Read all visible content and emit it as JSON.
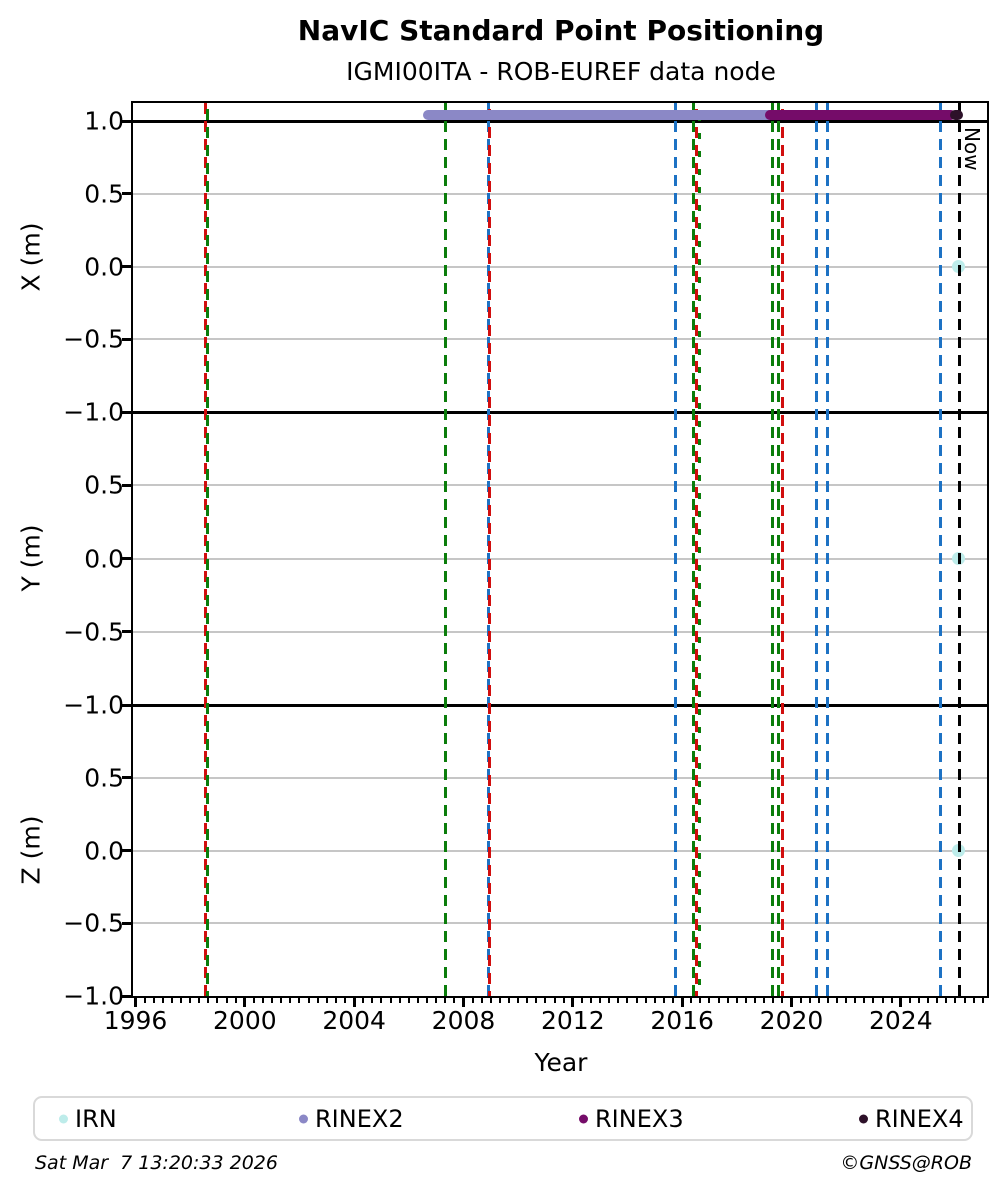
{
  "chart_data": {
    "type": "scatter",
    "title": "NavIC Standard Point Positioning",
    "subtitle": "IGMI00ITA - ROB-EUREF data node",
    "xlabel": "Year",
    "xlim": [
      1995.9,
      2027.2
    ],
    "xticks": [
      1996,
      2000,
      2004,
      2008,
      2012,
      2016,
      2020,
      2024
    ],
    "xtick_labels": [
      "1996",
      "2000",
      "2004",
      "2008",
      "2012",
      "2016",
      "2020",
      "2024"
    ],
    "minor_xtick_step_years": 0.333,
    "grid": "horizontal-only",
    "reference_lines_y": [
      1.0,
      -1.0
    ],
    "subplots": [
      {
        "ylabel": "X (m)",
        "ylim": [
          -1.0,
          1.125
        ],
        "yticks": [
          1.0,
          0.5,
          0.0,
          -0.5,
          -1.0
        ],
        "ytick_labels": [
          "1.0",
          "0.5",
          "0.0",
          "−0.5",
          "−1.0"
        ]
      },
      {
        "ylabel": "Y (m)",
        "ylim": [
          -1.0,
          1.0
        ],
        "yticks": [
          0.5,
          0.0,
          -0.5,
          -1.0
        ],
        "ytick_labels": [
          "0.5",
          "0.0",
          "−0.5",
          "−1.0"
        ]
      },
      {
        "ylabel": "Z (m)",
        "ylim": [
          -1.0,
          1.0
        ],
        "yticks": [
          0.5,
          0.0,
          -0.5,
          -1.0
        ],
        "ytick_labels": [
          "0.5",
          "0.0",
          "−0.5",
          "−1.0"
        ]
      }
    ],
    "series_bands": [
      {
        "name": "RINEX2",
        "subplot": 0,
        "y": 1.045,
        "start": 2006.7,
        "end": 2019.44,
        "color": "#8b88c6"
      },
      {
        "name": "RINEX3",
        "subplot": 0,
        "y": 1.045,
        "start": 2019.22,
        "end": 2025.84,
        "color": "#750c69"
      },
      {
        "name": "RINEX4",
        "subplot": 0,
        "y": 1.045,
        "start": 2026.0,
        "end": 2026.1,
        "color": "#2d1129"
      }
    ],
    "points": [
      {
        "name": "IRN",
        "subplot": 0,
        "x": 2026.1,
        "y": 0.0,
        "color": "#bdecea"
      },
      {
        "name": "IRN",
        "subplot": 1,
        "x": 2026.1,
        "y": 0.0,
        "color": "#bdecea"
      },
      {
        "name": "IRN",
        "subplot": 2,
        "x": 2026.1,
        "y": 0.0,
        "color": "#bdecea"
      }
    ],
    "event_lines": [
      {
        "x": 1998.56,
        "color": "#d10e0e"
      },
      {
        "x": 1998.63,
        "color": "#0b7d0b"
      },
      {
        "x": 2007.33,
        "color": "#0b7d0b"
      },
      {
        "x": 2008.9,
        "color": "#1d72c4"
      },
      {
        "x": 2008.96,
        "color": "#d10e0e"
      },
      {
        "x": 2015.76,
        "color": "#1d72c4"
      },
      {
        "x": 2016.43,
        "color": "#0b7d0b"
      },
      {
        "x": 2016.53,
        "color": "#d10e0e"
      },
      {
        "x": 2016.62,
        "color": "#0b7d0b"
      },
      {
        "x": 2019.29,
        "color": "#0b7d0b"
      },
      {
        "x": 2019.54,
        "color": "#0b7d0b"
      },
      {
        "x": 2019.66,
        "color": "#d10e0e"
      },
      {
        "x": 2020.9,
        "color": "#1d72c4"
      },
      {
        "x": 2021.31,
        "color": "#1d72c4"
      },
      {
        "x": 2025.44,
        "color": "#1d72c4"
      }
    ],
    "now_line": {
      "x": 2026.15,
      "label": "Now",
      "color": "#000000"
    }
  },
  "legend": {
    "items": [
      {
        "label": "IRN",
        "color": "#bdecea"
      },
      {
        "label": "RINEX2",
        "color": "#8b88c6"
      },
      {
        "label": "RINEX3",
        "color": "#750c69"
      },
      {
        "label": "RINEX4",
        "color": "#2d1129"
      }
    ]
  },
  "footer": {
    "timestamp": "Sat Mar  7 13:20:33 2026",
    "copyright": "©GNSS@ROB"
  },
  "colors": {
    "gridline": "#c6c6c6",
    "spine": "#000000",
    "legend_border": "#d9d9d9"
  }
}
